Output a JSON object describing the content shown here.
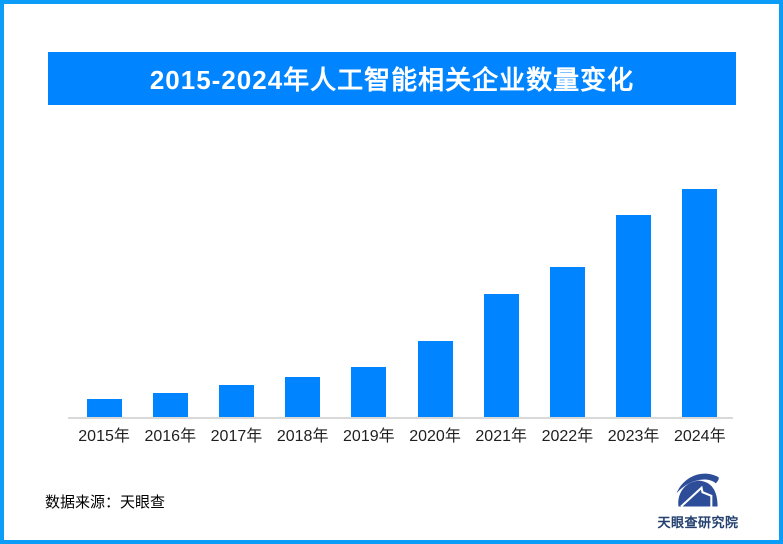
{
  "page": {
    "background": "#ffffff",
    "border_color": "#0b9df7"
  },
  "header": {
    "title": "2015-2024年人工智能相关企业数量变化",
    "banner_bg": "#0084ff",
    "title_color": "#ffffff"
  },
  "chart_data": {
    "type": "bar",
    "title": "2015-2024年人工智能相关企业数量变化",
    "categories": [
      "2015年",
      "2016年",
      "2017年",
      "2018年",
      "2019年",
      "2020年",
      "2021年",
      "2022年",
      "2023年",
      "2024年"
    ],
    "values": [
      7.9,
      10.5,
      14.0,
      17.5,
      21.9,
      33.3,
      53.9,
      65.8,
      88.6,
      100
    ],
    "values_note": "相对高度估算（2024年=100）；图中未标注具体数值，无Y轴与网格线",
    "bar_color": "#0084ff",
    "axis_line_color": "#d9d9d9",
    "tick_label_color": "#1f1f1f",
    "grid": false,
    "legend": false,
    "xlabel": "",
    "ylabel": "",
    "ylim": [
      0,
      105
    ]
  },
  "footer": {
    "source_text": "数据来源：天眼查",
    "brand": {
      "logo_label": "天眼查研究院",
      "logo_icon": "tianyancha-eye-swoosh",
      "logo_color": "#2e4d99",
      "label_color": "#23406f"
    }
  }
}
